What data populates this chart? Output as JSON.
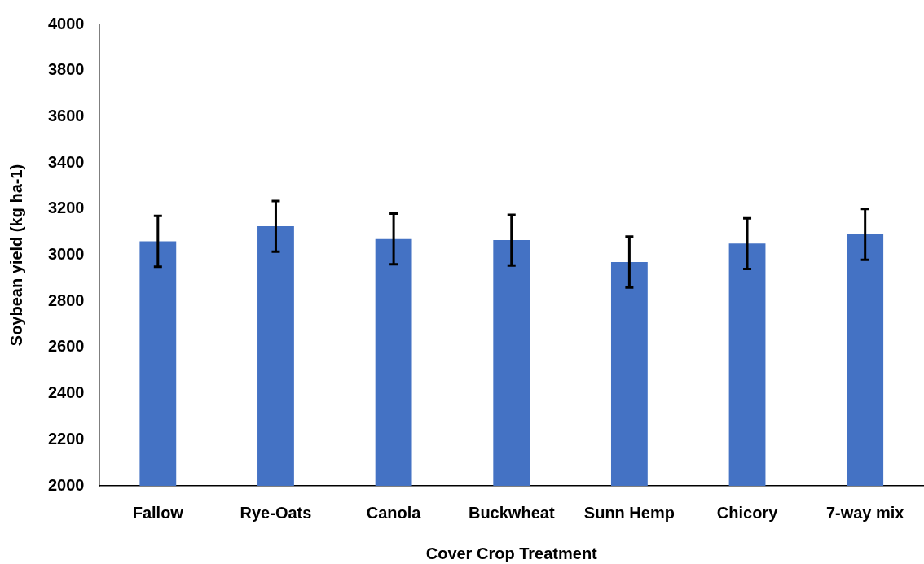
{
  "chart_data": {
    "type": "bar",
    "xlabel": "Cover Crop Treatment",
    "ylabel": "Soybean yield (kg ha-1)",
    "categories": [
      "Fallow",
      "Rye-Oats",
      "Canola",
      "Buckwheat",
      "Sunn Hemp",
      "Chicory",
      "7-way mix"
    ],
    "values": [
      3060,
      3125,
      3070,
      3065,
      2970,
      3050,
      3090
    ],
    "errors": [
      110,
      110,
      110,
      110,
      110,
      110,
      110
    ],
    "color": "#4472c4",
    "ylim": [
      2000,
      4000
    ],
    "yticks": [
      2000,
      2200,
      2400,
      2600,
      2800,
      3000,
      3200,
      3400,
      3600,
      3800,
      4000
    ],
    "grid": false,
    "legend": false
  }
}
